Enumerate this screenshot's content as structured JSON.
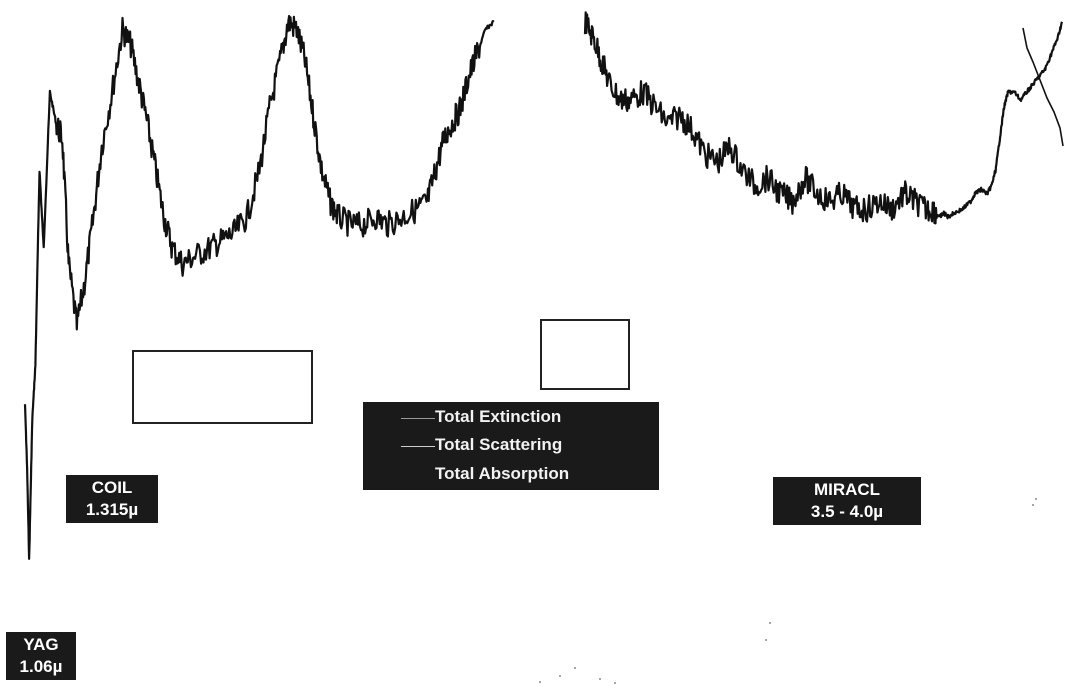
{
  "chart_data": {
    "type": "line",
    "title": "",
    "xlabel": "",
    "ylabel": "",
    "grid": false,
    "legend_position": "center",
    "legend": [
      "Total Extinction",
      "Total Scattering",
      "Total Absorption"
    ],
    "annotations": [
      {
        "id": "coil",
        "lines": [
          "COIL",
          "1.315µ"
        ]
      },
      {
        "id": "yag",
        "lines": [
          "YAG",
          "1.06µ"
        ]
      },
      {
        "id": "miracl",
        "lines": [
          "MIRACL",
          "3.5 - 4.0µ"
        ]
      }
    ],
    "series": [
      {
        "name": "Total Extinction",
        "color": "#111111",
        "x": [
          0.0,
          0.2,
          0.4,
          0.7,
          1.0,
          1.4,
          1.8,
          2.4,
          3.0,
          3.6,
          4.2,
          5.0,
          5.8,
          6.6,
          7.4,
          8.4,
          9.4,
          10.2,
          11.0,
          11.8,
          12.6,
          13.4,
          14.2,
          15.2,
          16.4,
          17.8,
          19.0,
          20.2,
          21.4,
          22.6,
          23.6,
          24.6,
          25.4,
          26.2,
          27.0,
          27.8,
          28.6,
          29.4,
          30.2,
          31.4,
          32.6,
          33.8,
          35.0,
          36.4,
          37.8,
          38.8,
          39.6,
          40.4,
          41.2,
          42.0,
          42.8,
          43.6,
          44.4,
          45.2,
          54.0,
          54.8,
          55.6,
          56.4,
          57.4,
          58.4,
          59.6,
          60.8,
          62.0,
          63.2,
          64.4,
          65.6,
          66.8,
          68.0,
          69.2,
          70.4,
          71.6,
          72.8,
          74.0,
          75.2,
          76.4,
          77.6,
          78.8,
          80.0,
          81.2,
          82.4,
          83.6,
          84.8,
          85.8,
          86.8,
          87.6,
          88.2,
          88.6,
          89.0,
          89.6,
          90.4,
          91.2,
          91.6,
          92.2,
          92.8,
          93.2,
          93.6,
          94.0,
          94.4,
          94.8,
          95.4,
          96.0,
          96.6,
          97.2,
          97.8,
          98.4,
          99.0,
          99.6,
          100.0
        ],
        "y": [
          0.5,
          0.42,
          0.3,
          0.48,
          0.55,
          0.8,
          0.7,
          0.9,
          0.86,
          0.84,
          0.68,
          0.6,
          0.66,
          0.74,
          0.83,
          0.9,
          0.98,
          0.96,
          0.91,
          0.86,
          0.8,
          0.74,
          0.7,
          0.68,
          0.69,
          0.7,
          0.71,
          0.72,
          0.74,
          0.8,
          0.88,
          0.94,
          0.99,
          0.98,
          0.94,
          0.87,
          0.8,
          0.76,
          0.74,
          0.73,
          0.73,
          0.74,
          0.73,
          0.74,
          0.75,
          0.76,
          0.8,
          0.84,
          0.86,
          0.88,
          0.92,
          0.95,
          0.98,
          0.99,
          0.99,
          0.97,
          0.94,
          0.91,
          0.89,
          0.89,
          0.9,
          0.88,
          0.86,
          0.87,
          0.85,
          0.82,
          0.81,
          0.83,
          0.8,
          0.78,
          0.79,
          0.77,
          0.76,
          0.79,
          0.77,
          0.76,
          0.77,
          0.75,
          0.75,
          0.76,
          0.75,
          0.77,
          0.76,
          0.75,
          0.75,
          0.74,
          0.745,
          0.74,
          0.745,
          0.75,
          0.76,
          0.77,
          0.775,
          0.77,
          0.78,
          0.8,
          0.84,
          0.88,
          0.9,
          0.9,
          0.89,
          0.9,
          0.91,
          0.92,
          0.93,
          0.95,
          0.97,
          0.99
        ]
      },
      {
        "name": "Total Scattering",
        "color": "#111111",
        "x": [],
        "y": []
      },
      {
        "name": "Total Absorption",
        "color": "#111111",
        "x": [],
        "y": []
      }
    ],
    "x_range": [
      0,
      100
    ],
    "y_range": [
      0.28,
      1.0
    ]
  }
}
